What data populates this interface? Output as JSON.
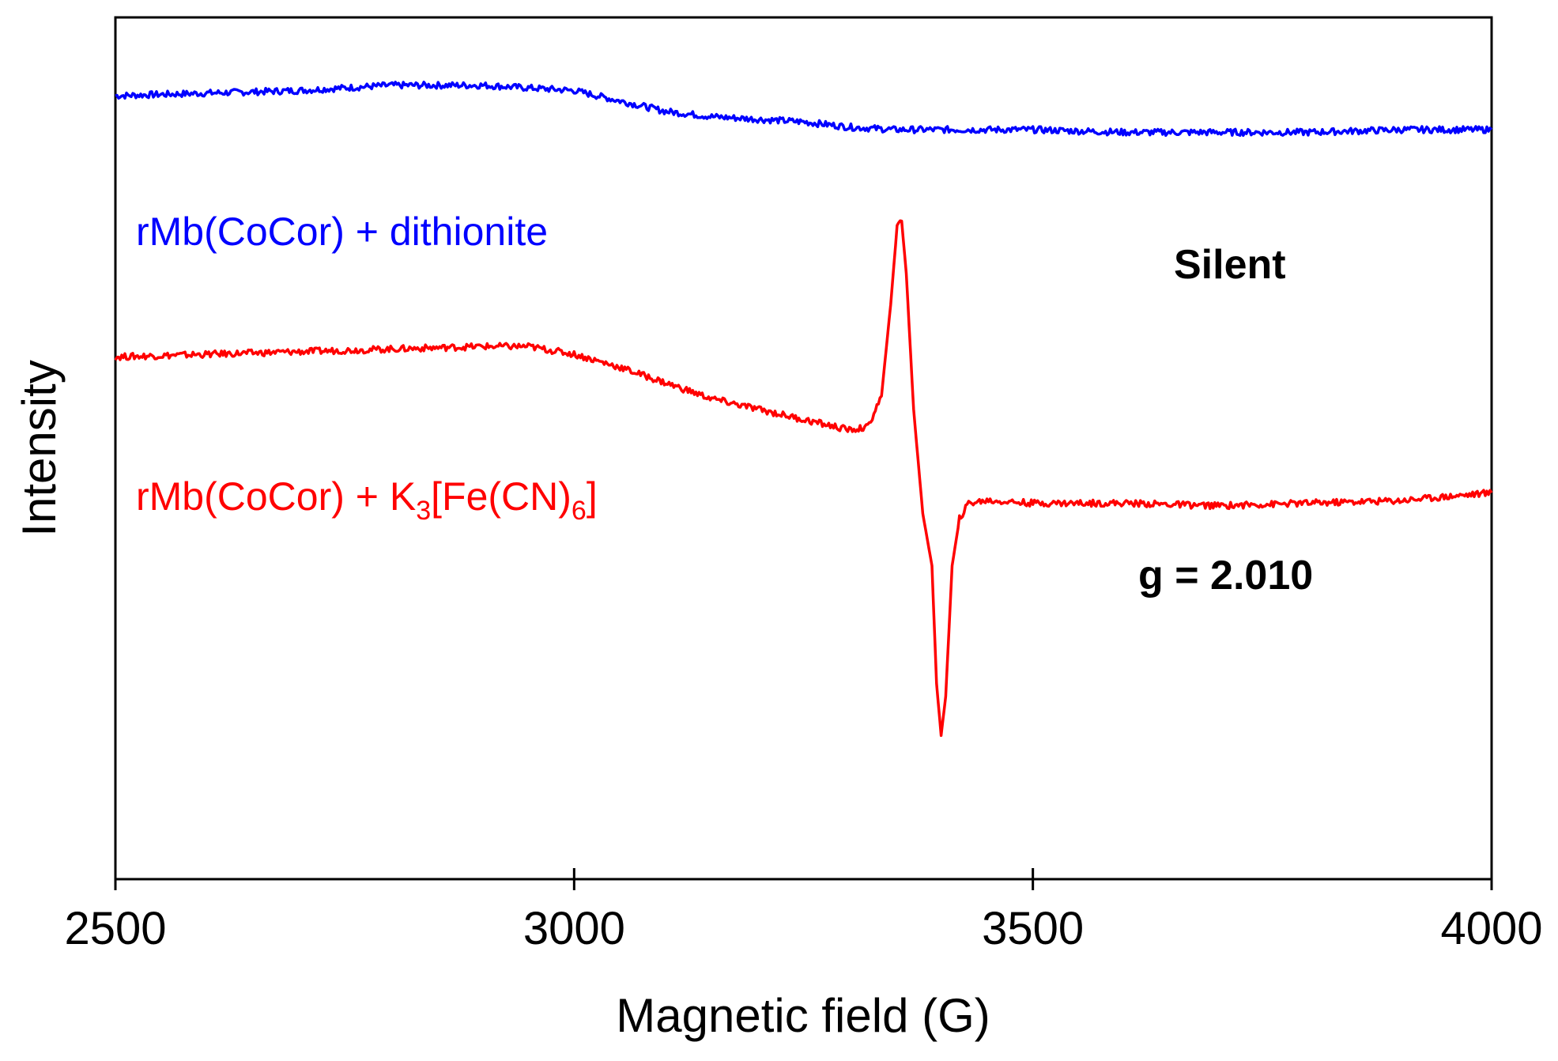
{
  "chart_data": {
    "type": "line",
    "title": "",
    "xlabel": "Magnetic field (G)",
    "ylabel": "Intensity",
    "xlim": [
      2500,
      4000
    ],
    "ylim": [
      -1.0,
      2.3
    ],
    "xticks": [
      2500,
      3000,
      3500,
      4000
    ],
    "xtick_labels": [
      "2500",
      "3000",
      "3500",
      "4000"
    ],
    "grid": false,
    "series": [
      {
        "name": "rMb(CoCor) + dithionite",
        "label_main": "rMb(CoCor) + dithionite",
        "color": "#0000ff",
        "x": [
          2500,
          2600,
          2700,
          2800,
          2900,
          3000,
          3050,
          3100,
          3150,
          3200,
          3250,
          3300,
          3350,
          3400,
          3500,
          3600,
          3700,
          3800,
          3900,
          4000
        ],
        "y": [
          2.0,
          2.01,
          2.02,
          2.04,
          2.04,
          2.02,
          1.98,
          1.94,
          1.92,
          1.91,
          1.9,
          1.88,
          1.87,
          1.87,
          1.87,
          1.86,
          1.86,
          1.86,
          1.87,
          1.87
        ]
      },
      {
        "name": "rMb(CoCor) + K3[Fe(CN)6]",
        "label_main": "rMb(CoCor) + K",
        "label_sub1": "3",
        "label_mid": "[Fe(CN)",
        "label_sub2": "6",
        "label_end": "]",
        "color": "#ff0000",
        "x": [
          2500,
          2600,
          2700,
          2800,
          2900,
          2950,
          3000,
          3050,
          3100,
          3150,
          3200,
          3250,
          3300,
          3320,
          3335,
          3345,
          3352,
          3357,
          3362,
          3370,
          3380,
          3390,
          3395,
          3400,
          3405,
          3412,
          3420,
          3430,
          3450,
          3500,
          3600,
          3700,
          3800,
          3900,
          4000
        ],
        "y": [
          1.0,
          1.01,
          1.02,
          1.03,
          1.04,
          1.04,
          1.01,
          0.96,
          0.9,
          0.84,
          0.8,
          0.76,
          0.72,
          0.73,
          0.85,
          1.2,
          1.5,
          1.52,
          1.32,
          0.8,
          0.4,
          0.2,
          -0.25,
          -0.45,
          -0.3,
          0.2,
          0.38,
          0.44,
          0.45,
          0.44,
          0.44,
          0.43,
          0.44,
          0.45,
          0.48
        ]
      }
    ],
    "annotations": [
      {
        "text": "Silent",
        "series": 0,
        "at_x": 3790
      },
      {
        "text": "g = 2.010",
        "series": 1,
        "at_x": 3770
      }
    ]
  }
}
